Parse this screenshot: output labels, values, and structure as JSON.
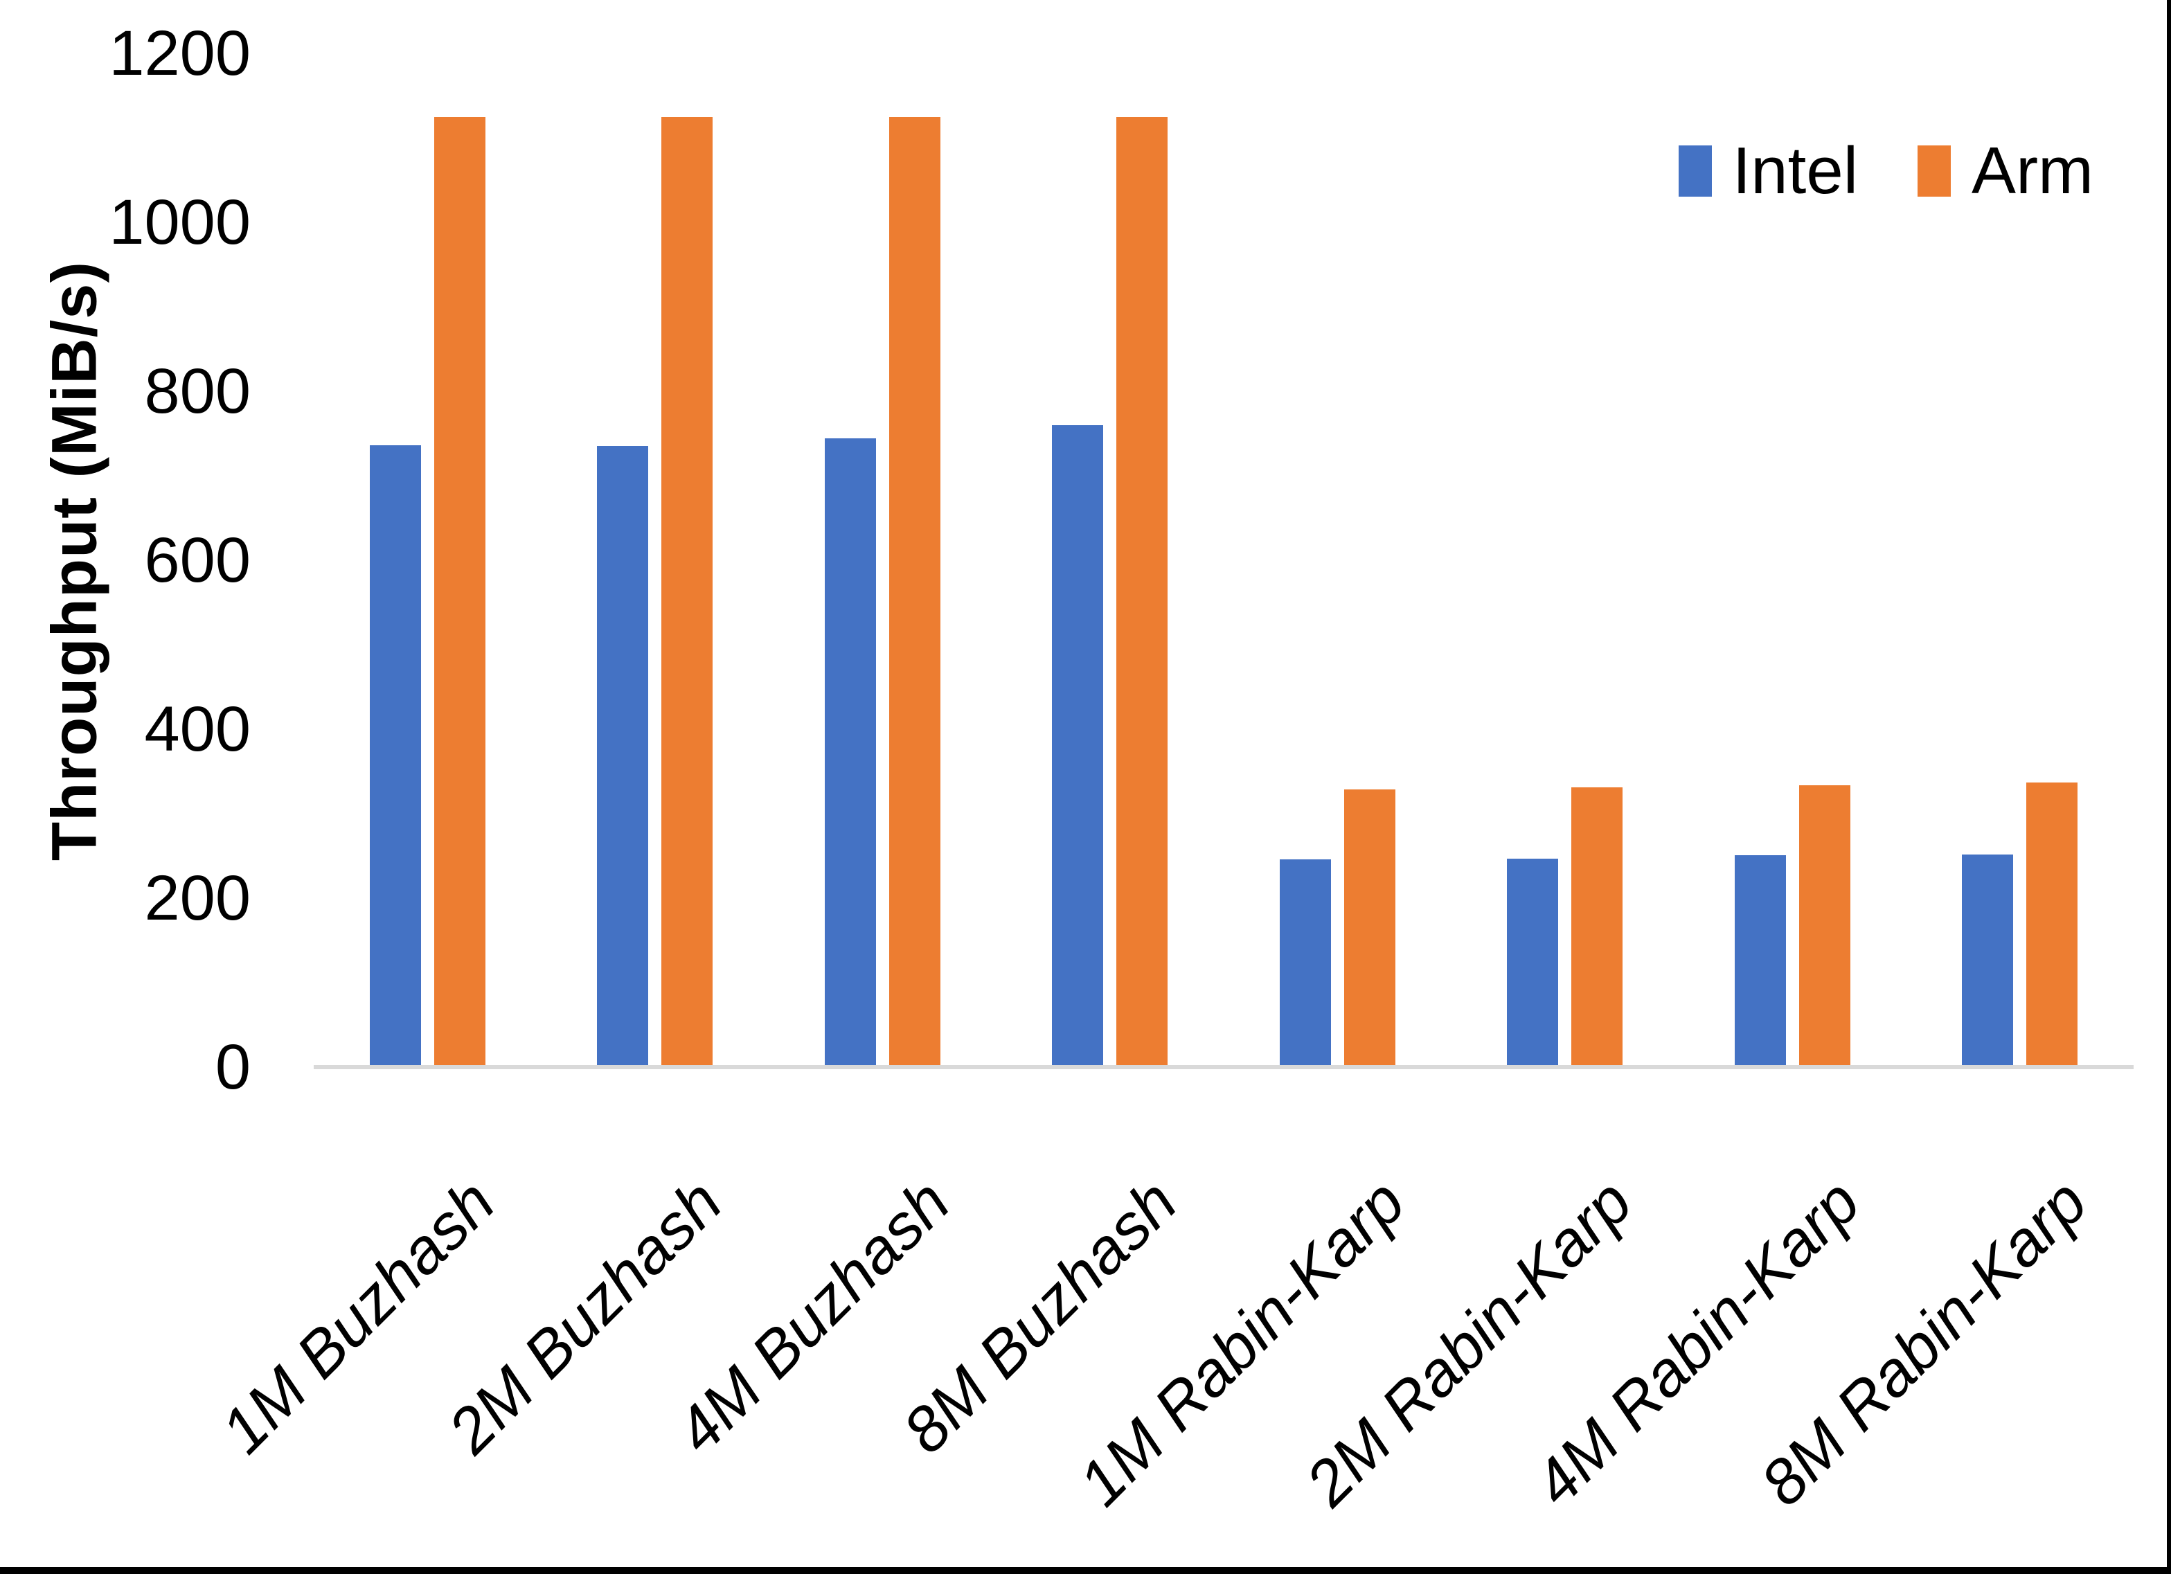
{
  "figure": {
    "background_color": "#FFFFFF",
    "edge_color": "#000000"
  },
  "chart_data": {
    "type": "bar",
    "title": "",
    "xlabel": "",
    "ylabel": "Throughput (MiB/s)",
    "ylim": [
      0,
      1200
    ],
    "yticks": [
      0,
      200,
      400,
      600,
      800,
      1000,
      1200
    ],
    "grid": false,
    "legend_position": "top-right",
    "axis_line_color": "#D9D9D9",
    "text_color": "#000000",
    "categories": [
      "1M Buzhash",
      "2M Buzhash",
      "4M Buzhash",
      "8M Buzhash",
      "1M Rabin-Karp",
      "2M Rabin-Karp",
      "4M Rabin-Karp",
      "8M Rabin-Karp"
    ],
    "series": [
      {
        "name": "Intel",
        "color": "#4472C4",
        "values": [
          736,
          735,
          744,
          760,
          246,
          247,
          251,
          252
        ]
      },
      {
        "name": "Arm",
        "color": "#ED7D31",
        "values": [
          1125,
          1125,
          1125,
          1125,
          329,
          331,
          334,
          337
        ]
      }
    ]
  }
}
